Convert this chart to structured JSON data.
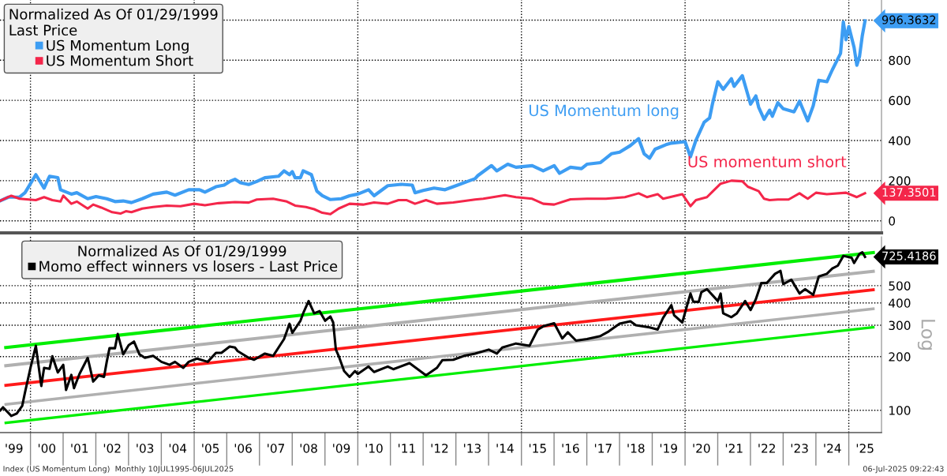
{
  "chart_data": [
    {
      "type": "line",
      "legend_title": "Normalized As Of 01/29/1999\nLast Price",
      "legend": "top left",
      "grid": "y",
      "tick_labels": "y",
      "xlim": [
        "1999-01-26",
        "2026-01-01"
      ],
      "ylim": [
        -60,
        1100
      ],
      "yticks": [
        0,
        200,
        400,
        600,
        800,
        {
          "value": 1000,
          "label": null
        }
      ],
      "ref_lines": [
        {
          "axis": "x",
          "value": "2000-01-01",
          "color": "#000000",
          "line_style": "dotted"
        },
        {
          "axis": "x",
          "value": "2005-01-01",
          "color": "#000000",
          "line_style": "dotted"
        },
        {
          "axis": "x",
          "value": "2010-01-01",
          "color": "#000000",
          "line_style": "dotted"
        },
        {
          "axis": "x",
          "value": "2015-01-01",
          "color": "#000000",
          "line_style": "dotted"
        },
        {
          "axis": "x",
          "value": "2020-01-01",
          "color": "#000000",
          "line_style": "dotted"
        },
        {
          "axis": "x",
          "value": "2025-01-01",
          "color": "#000000",
          "line_style": "dotted"
        }
      ],
      "annotations": [
        "US Momentum long",
        "US momentum short",
        {
          "text": "996.3632",
          "x": "2025-07",
          "y": 996.3632
        },
        {
          "text": "137.3501",
          "x": "2025-07",
          "y": 137.3501
        }
      ],
      "series": [
        {
          "name": "US Momentum Long",
          "color": "#3d9df3",
          "x": [
            "1999-01-29",
            "1999-05",
            "1999-09",
            "1999-11",
            "2000-01",
            "2000-03",
            "2000-06",
            "2000-07",
            "2000-08",
            "2000-11",
            "2000-12",
            "2001-04",
            "2001-06",
            "2001-10",
            "2002-01",
            "2002-05",
            "2002-08",
            "2002-11",
            "2003-02",
            "2003-06",
            "2003-10",
            "2004-03",
            "2004-06",
            "2004-11",
            "2005-03",
            "2005-05",
            "2005-09",
            "2005-12",
            "2006-02",
            "2006-04",
            "2006-06",
            "2006-09",
            "2006-12",
            "2007-03",
            "2007-08",
            "2007-10",
            "2007-12",
            "2008-01",
            "2008-02",
            "2008-04",
            "2008-05",
            "2008-08",
            "2008-10",
            "2008-12",
            "2009-03",
            "2009-07",
            "2009-10",
            "2010-01",
            "2010-05",
            "2010-07",
            "2010-12",
            "2011-05",
            "2011-09",
            "2011-10",
            "2012-01",
            "2012-05",
            "2012-09",
            "2013-01",
            "2013-06",
            "2013-08",
            "2013-09",
            "2014-02",
            "2014-04",
            "2014-08",
            "2014-11",
            "2015-05",
            "2015-09",
            "2016-01",
            "2016-03",
            "2016-07",
            "2016-11",
            "2017-01",
            "2017-06",
            "2017-10",
            "2018-01",
            "2018-05",
            "2018-08",
            "2018-10",
            "2018-12",
            "2019-02",
            "2019-06",
            "2019-08",
            "2020-01",
            "2020-03",
            "2020-05",
            "2020-08",
            "2020-10",
            "2020-11",
            "2021-01",
            "2021-03",
            "2021-06",
            "2021-07",
            "2021-10",
            "2022-01",
            "2022-03",
            "2022-04",
            "2022-06",
            "2022-08",
            "2022-09",
            "2022-11",
            "2023-01",
            "2023-05",
            "2023-07",
            "2023-10",
            "2023-12",
            "2024-02",
            "2024-05",
            "2024-07",
            "2024-10",
            "2024-11",
            "2024-12",
            "2025-01",
            "2025-03",
            "2025-04",
            "2025-05",
            "2025-06",
            "2025-07"
          ],
          "values": [
            100,
            118,
            118,
            140,
            185,
            230,
            163,
            193,
            222,
            215,
            155,
            133,
            140,
            110,
            121,
            110,
            96,
            99,
            91,
            110,
            133,
            143,
            128,
            155,
            155,
            143,
            170,
            178,
            196,
            207,
            190,
            181,
            196,
            215,
            222,
            249,
            230,
            245,
            215,
            215,
            249,
            230,
            148,
            125,
            106,
            110,
            125,
            133,
            155,
            125,
            175,
            182,
            178,
            140,
            151,
            163,
            155,
            175,
            200,
            210,
            225,
            275,
            249,
            282,
            267,
            275,
            249,
            275,
            237,
            267,
            260,
            282,
            290,
            334,
            342,
            375,
            409,
            334,
            312,
            357,
            379,
            387,
            394,
            319,
            401,
            491,
            513,
            581,
            693,
            655,
            708,
            670,
            723,
            581,
            622,
            566,
            506,
            551,
            521,
            588,
            558,
            543,
            596,
            498,
            573,
            700,
            693,
            752,
            834,
            991,
            902,
            968,
            864,
            775,
            819,
            923,
            996.3632
          ]
        },
        {
          "name": "US Momentum Short",
          "color": "#f4264a",
          "x": [
            "1999-01-29",
            "1999-06",
            "1999-09",
            "2000-03",
            "2000-06",
            "2000-09",
            "2000-12",
            "2001-01",
            "2001-04",
            "2001-06",
            "2001-10",
            "2001-12",
            "2002-03",
            "2002-07",
            "2002-10",
            "2002-12",
            "2003-02",
            "2003-06",
            "2003-10",
            "2004-03",
            "2004-08",
            "2005-01",
            "2005-05",
            "2005-10",
            "2006-04",
            "2006-09",
            "2006-12",
            "2007-06",
            "2007-11",
            "2008-02",
            "2008-06",
            "2008-09",
            "2008-12",
            "2009-03",
            "2009-06",
            "2009-10",
            "2010-03",
            "2010-07",
            "2010-12",
            "2011-04",
            "2011-07",
            "2011-10",
            "2012-02",
            "2012-06",
            "2012-12",
            "2013-08",
            "2013-11",
            "2014-07",
            "2014-11",
            "2015-05",
            "2015-09",
            "2016-01",
            "2016-07",
            "2017-01",
            "2017-08",
            "2018-03",
            "2018-08",
            "2018-11",
            "2019-03",
            "2019-05",
            "2019-12",
            "2020-03",
            "2020-05",
            "2020-09",
            "2020-11",
            "2021-02",
            "2021-06",
            "2021-10",
            "2021-12",
            "2022-04",
            "2022-06",
            "2022-08",
            "2022-11",
            "2023-03",
            "2023-07",
            "2023-10",
            "2024-01",
            "2024-05",
            "2024-12",
            "2025-04",
            "2025-07"
          ],
          "values": [
            100,
            125,
            110,
            103,
            118,
            103,
            96,
            125,
            85,
            96,
            61,
            81,
            66,
            43,
            36,
            48,
            43,
            61,
            69,
            76,
            73,
            85,
            78,
            88,
            93,
            91,
            106,
            110,
            96,
            76,
            69,
            58,
            40,
            33,
            61,
            85,
            81,
            91,
            85,
            103,
            103,
            85,
            103,
            85,
            91,
            106,
            110,
            128,
            118,
            110,
            85,
            81,
            107,
            110,
            110,
            118,
            137,
            118,
            133,
            110,
            133,
            73,
            103,
            118,
            145,
            185,
            200,
            197,
            170,
            148,
            110,
            103,
            106,
            106,
            137,
            110,
            140,
            133,
            140,
            118,
            137.3501
          ]
        }
      ]
    },
    {
      "type": "line",
      "legend_title": "Normalized As Of 01/29/1999",
      "legend": "top left",
      "grid": "y",
      "log": true,
      "ylabel": "Log",
      "xlim": [
        "1999-01-26",
        "2026-01-01"
      ],
      "ylim": [
        75,
        940
      ],
      "yticks": [
        100,
        200,
        300,
        400,
        500
      ],
      "xticks": [
        {
          "value": "1999-07-01",
          "label": "'99"
        },
        {
          "value": "2000-01-01",
          "label": null
        },
        {
          "value": "2000-07-01",
          "label": "'00"
        },
        {
          "value": "2001-07-01",
          "label": "'01"
        },
        {
          "value": "2002-07-01",
          "label": "'02"
        },
        {
          "value": "2003-07-01",
          "label": "'03"
        },
        {
          "value": "2004-07-01",
          "label": "'04"
        },
        {
          "value": "2005-01-01",
          "label": null
        },
        {
          "value": "2005-07-01",
          "label": "'05"
        },
        {
          "value": "2006-07-01",
          "label": "'06"
        },
        {
          "value": "2007-07-01",
          "label": "'07"
        },
        {
          "value": "2008-07-01",
          "label": "'08"
        },
        {
          "value": "2009-07-01",
          "label": "'09"
        },
        {
          "value": "2010-01-01",
          "label": null
        },
        {
          "value": "2010-07-01",
          "label": "'10"
        },
        {
          "value": "2011-07-01",
          "label": "'11"
        },
        {
          "value": "2012-07-01",
          "label": "'12"
        },
        {
          "value": "2013-07-01",
          "label": "'13"
        },
        {
          "value": "2014-07-01",
          "label": "'14"
        },
        {
          "value": "2015-01-01",
          "label": null
        },
        {
          "value": "2015-07-01",
          "label": "'15"
        },
        {
          "value": "2016-07-01",
          "label": "'16"
        },
        {
          "value": "2017-07-01",
          "label": "'17"
        },
        {
          "value": "2018-07-01",
          "label": "'18"
        },
        {
          "value": "2019-07-01",
          "label": "'19"
        },
        {
          "value": "2020-01-01",
          "label": null
        },
        {
          "value": "2020-07-01",
          "label": "'20"
        },
        {
          "value": "2021-07-01",
          "label": "'21"
        },
        {
          "value": "2022-07-01",
          "label": "'22"
        },
        {
          "value": "2023-07-01",
          "label": "'23"
        },
        {
          "value": "2024-07-01",
          "label": "'24"
        },
        {
          "value": "2025-01-01",
          "label": null
        },
        {
          "value": "2025-07-01",
          "label": "'25"
        }
      ],
      "ref_lines": [
        {
          "axis": "x",
          "value": "2000-01-01",
          "color": "#000000",
          "line_style": "dotted"
        },
        {
          "axis": "x",
          "value": "2005-01-01",
          "color": "#000000",
          "line_style": "dotted"
        },
        {
          "axis": "x",
          "value": "2010-01-01",
          "color": "#000000",
          "line_style": "dotted"
        },
        {
          "axis": "x",
          "value": "2015-01-01",
          "color": "#000000",
          "line_style": "dotted"
        },
        {
          "axis": "x",
          "value": "2020-01-01",
          "color": "#000000",
          "line_style": "dotted"
        },
        {
          "axis": "x",
          "value": "2025-01-01",
          "color": "#000000",
          "line_style": "dotted"
        }
      ],
      "annotations": [
        {
          "text": "725.4186",
          "x": "2025-07",
          "y": 725.4186
        },
        "Index (US Momentum Long)  Monthly 10JUL1995-06JUL2025",
        "06-Jul-2025 09:22:43"
      ],
      "series": [
        {
          "color": "#00ee00",
          "x": [
            "1999-04",
            "2025-10"
          ],
          "values": [
            225,
            767
          ]
        },
        {
          "color": "#b0b0b0",
          "x": [
            "1999-04",
            "2025-10"
          ],
          "values": [
            178,
            602
          ]
        },
        {
          "color": "#ff1a1a",
          "x": [
            "1999-04",
            "2025-10"
          ],
          "values": [
            138,
            474
          ]
        },
        {
          "color": "#b0b0b0",
          "x": [
            "1999-04",
            "2025-10"
          ],
          "values": [
            108,
            371
          ]
        },
        {
          "color": "#00ee00",
          "x": [
            "1999-04",
            "2025-10"
          ],
          "values": [
            85,
            292
          ]
        },
        {
          "name": "Momo effect winners vs losers - Last Price",
          "color": "#000000",
          "x": [
            "1999-01-29",
            "1999-03",
            "1999-06",
            "1999-08",
            "1999-10",
            "1999-11",
            "2000-01",
            "2000-03",
            "2000-05",
            "2000-06",
            "2000-08",
            "2000-09",
            "2000-11",
            "2001-01",
            "2001-02",
            "2001-04",
            "2001-05",
            "2001-07",
            "2001-10",
            "2001-12",
            "2002-02",
            "2002-04",
            "2002-05",
            "2002-06",
            "2002-08",
            "2002-09",
            "2002-11",
            "2003-01",
            "2003-03",
            "2003-05",
            "2003-07",
            "2003-10",
            "2004-01",
            "2004-04",
            "2004-06",
            "2004-09",
            "2004-11",
            "2005-02",
            "2005-06",
            "2005-09",
            "2005-11",
            "2006-02",
            "2006-04",
            "2006-05",
            "2006-09",
            "2006-11",
            "2007-03",
            "2007-06",
            "2007-10",
            "2007-12",
            "2008-01",
            "2008-04",
            "2008-05",
            "2008-07",
            "2008-09",
            "2008-11",
            "2009-01",
            "2009-03",
            "2009-04",
            "2009-05",
            "2009-06",
            "2009-08",
            "2009-10",
            "2009-12",
            "2010-01",
            "2010-05",
            "2010-07",
            "2010-12",
            "2011-02",
            "2011-08",
            "2011-11",
            "2012-02",
            "2012-06",
            "2012-08",
            "2012-12",
            "2013-04",
            "2013-08",
            "2014-01",
            "2014-04",
            "2014-06",
            "2014-11",
            "2015-04",
            "2015-07",
            "2015-09",
            "2016-01",
            "2016-04",
            "2016-06",
            "2016-09",
            "2017-01",
            "2017-06",
            "2017-09",
            "2018-01",
            "2018-05",
            "2018-07",
            "2018-12",
            "2019-03",
            "2019-05",
            "2019-08",
            "2019-09",
            "2019-12",
            "2020-03",
            "2020-04",
            "2020-06",
            "2020-07",
            "2020-09",
            "2021-01",
            "2021-02",
            "2021-03",
            "2021-06",
            "2021-08",
            "2021-11",
            "2022-01",
            "2022-03",
            "2022-05",
            "2022-07",
            "2022-10",
            "2022-12",
            "2023-01",
            "2023-04",
            "2023-07",
            "2023-09",
            "2023-12",
            "2024-02",
            "2024-05",
            "2024-07",
            "2024-09",
            "2024-11",
            "2025-02",
            "2025-03",
            "2025-05",
            "2025-06",
            "2025-07"
          ],
          "values": [
            100,
            104,
            93,
            96,
            106,
            126,
            173,
            230,
            137,
            173,
            171,
            201,
            163,
            180,
            130,
            158,
            133,
            160,
            197,
            145,
            157,
            154,
            187,
            223,
            223,
            268,
            206,
            232,
            243,
            206,
            197,
            202,
            187,
            180,
            187,
            173,
            187,
            195,
            187,
            210,
            210,
            228,
            225,
            215,
            197,
            192,
            208,
            202,
            251,
            306,
            272,
            318,
            350,
            410,
            350,
            360,
            318,
            336,
            311,
            219,
            202,
            166,
            154,
            166,
            160,
            176,
            164,
            176,
            170,
            184,
            170,
            157,
            173,
            191,
            192,
            202,
            208,
            219,
            208,
            225,
            237,
            230,
            283,
            296,
            308,
            253,
            274,
            246,
            251,
            261,
            277,
            306,
            316,
            300,
            292,
            284,
            330,
            389,
            341,
            311,
            452,
            407,
            405,
            460,
            478,
            410,
            452,
            350,
            333,
            350,
            410,
            365,
            420,
            518,
            518,
            583,
            605,
            510,
            540,
            452,
            478,
            444,
            563,
            583,
            624,
            648,
            735,
            718,
            670,
            755,
            770,
            725.4186
          ]
        }
      ]
    }
  ]
}
